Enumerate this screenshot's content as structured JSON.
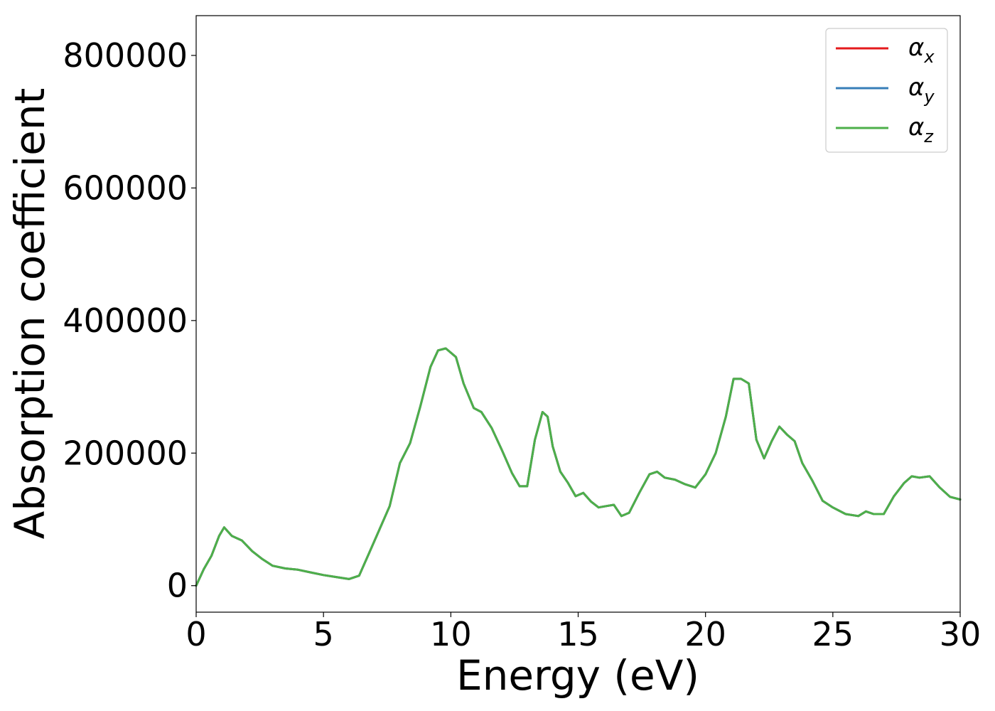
{
  "chart_data": {
    "type": "line",
    "title": "",
    "xlabel": "Energy (eV)",
    "ylabel": "Absorption coefficient",
    "xlim": [
      0,
      30
    ],
    "ylim": [
      -40000,
      860000
    ],
    "xticks": [
      "0",
      "5",
      "10",
      "15",
      "20",
      "25",
      "30"
    ],
    "xtick_values": [
      0,
      5,
      10,
      15,
      20,
      25,
      30
    ],
    "yticks": [
      "0",
      "200000",
      "400000",
      "600000",
      "800000"
    ],
    "ytick_values": [
      0,
      200000,
      400000,
      600000,
      800000
    ],
    "grid": false,
    "legend_position": "top-right",
    "series": [
      {
        "name": "α",
        "subscript": "x",
        "color": "#e41a1c",
        "x": [
          0,
          0.3,
          0.6,
          0.9,
          1.1,
          1.4,
          1.8,
          2.2,
          2.6,
          3.0,
          3.5,
          4.0,
          4.5,
          5.0,
          5.5,
          6.0,
          6.4,
          6.8,
          7.2,
          7.6,
          8.0,
          8.4,
          8.8,
          9.2,
          9.5,
          9.8,
          10.2,
          10.5,
          10.9,
          11.2,
          11.6,
          12.0,
          12.4,
          12.7,
          13.0,
          13.3,
          13.6,
          13.8,
          14.0,
          14.3,
          14.6,
          14.9,
          15.2,
          15.5,
          15.8,
          16.1,
          16.4,
          16.7,
          17.0,
          17.4,
          17.8,
          18.1,
          18.4,
          18.8,
          19.2,
          19.6,
          20.0,
          20.4,
          20.8,
          21.1,
          21.4,
          21.7,
          22.0,
          22.3,
          22.6,
          22.9,
          23.2,
          23.5,
          23.8,
          24.2,
          24.6,
          25.0,
          25.5,
          26.0,
          26.3,
          26.6,
          27.0,
          27.4,
          27.8,
          28.1,
          28.4,
          28.8,
          29.2,
          29.6,
          30.0
        ],
        "values": [
          0,
          25000,
          45000,
          75000,
          88000,
          75000,
          68000,
          52000,
          40000,
          30000,
          26000,
          24000,
          20000,
          16000,
          13000,
          10000,
          15000,
          50000,
          85000,
          120000,
          185000,
          215000,
          270000,
          330000,
          355000,
          358000,
          345000,
          305000,
          268000,
          262000,
          238000,
          205000,
          170000,
          150000,
          150000,
          220000,
          262000,
          255000,
          210000,
          172000,
          155000,
          135000,
          140000,
          127000,
          118000,
          120000,
          122000,
          105000,
          110000,
          140000,
          168000,
          172000,
          163000,
          160000,
          153000,
          148000,
          168000,
          200000,
          255000,
          312000,
          312000,
          305000,
          220000,
          192000,
          218000,
          240000,
          228000,
          218000,
          185000,
          158000,
          128000,
          118000,
          108000,
          105000,
          112000,
          108000,
          108000,
          135000,
          155000,
          165000,
          163000,
          165000,
          148000,
          134000,
          130000
        ]
      },
      {
        "name": "α",
        "subscript": "y",
        "color": "#377eb8",
        "x": [
          0,
          0.3,
          0.6,
          0.9,
          1.1,
          1.4,
          1.8,
          2.2,
          2.6,
          3.0,
          3.5,
          4.0,
          4.5,
          5.0,
          5.5,
          6.0,
          6.4,
          6.8,
          7.2,
          7.6,
          8.0,
          8.4,
          8.8,
          9.2,
          9.5,
          9.8,
          10.2,
          10.5,
          10.9,
          11.2,
          11.6,
          12.0,
          12.4,
          12.7,
          13.0,
          13.3,
          13.6,
          13.8,
          14.0,
          14.3,
          14.6,
          14.9,
          15.2,
          15.5,
          15.8,
          16.1,
          16.4,
          16.7,
          17.0,
          17.4,
          17.8,
          18.1,
          18.4,
          18.8,
          19.2,
          19.6,
          20.0,
          20.4,
          20.8,
          21.1,
          21.4,
          21.7,
          22.0,
          22.3,
          22.6,
          22.9,
          23.2,
          23.5,
          23.8,
          24.2,
          24.6,
          25.0,
          25.5,
          26.0,
          26.3,
          26.6,
          27.0,
          27.4,
          27.8,
          28.1,
          28.4,
          28.8,
          29.2,
          29.6,
          30.0
        ],
        "values": [
          0,
          25000,
          45000,
          75000,
          88000,
          75000,
          68000,
          52000,
          40000,
          30000,
          26000,
          24000,
          20000,
          16000,
          13000,
          10000,
          15000,
          50000,
          85000,
          120000,
          185000,
          215000,
          270000,
          330000,
          355000,
          358000,
          345000,
          305000,
          268000,
          262000,
          238000,
          205000,
          170000,
          150000,
          150000,
          220000,
          262000,
          255000,
          210000,
          172000,
          155000,
          135000,
          140000,
          127000,
          118000,
          120000,
          122000,
          105000,
          110000,
          140000,
          168000,
          172000,
          163000,
          160000,
          153000,
          148000,
          168000,
          200000,
          255000,
          312000,
          312000,
          305000,
          220000,
          192000,
          218000,
          240000,
          228000,
          218000,
          185000,
          158000,
          128000,
          118000,
          108000,
          105000,
          112000,
          108000,
          108000,
          135000,
          155000,
          165000,
          163000,
          165000,
          148000,
          134000,
          130000
        ]
      },
      {
        "name": "α",
        "subscript": "z",
        "color": "#4daf4a",
        "x": [
          0,
          0.3,
          0.6,
          0.9,
          1.1,
          1.4,
          1.8,
          2.2,
          2.6,
          3.0,
          3.5,
          4.0,
          4.5,
          5.0,
          5.5,
          6.0,
          6.4,
          6.8,
          7.2,
          7.6,
          8.0,
          8.4,
          8.8,
          9.2,
          9.5,
          9.8,
          10.2,
          10.5,
          10.9,
          11.2,
          11.6,
          12.0,
          12.4,
          12.7,
          13.0,
          13.3,
          13.6,
          13.8,
          14.0,
          14.3,
          14.6,
          14.9,
          15.2,
          15.5,
          15.8,
          16.1,
          16.4,
          16.7,
          17.0,
          17.4,
          17.8,
          18.1,
          18.4,
          18.8,
          19.2,
          19.6,
          20.0,
          20.4,
          20.8,
          21.1,
          21.4,
          21.7,
          22.0,
          22.3,
          22.6,
          22.9,
          23.2,
          23.5,
          23.8,
          24.2,
          24.6,
          25.0,
          25.5,
          26.0,
          26.3,
          26.6,
          27.0,
          27.4,
          27.8,
          28.1,
          28.4,
          28.8,
          29.2,
          29.6,
          30.0
        ],
        "values": [
          0,
          25000,
          45000,
          75000,
          88000,
          75000,
          68000,
          52000,
          40000,
          30000,
          26000,
          24000,
          20000,
          16000,
          13000,
          10000,
          15000,
          50000,
          85000,
          120000,
          185000,
          215000,
          270000,
          330000,
          355000,
          358000,
          345000,
          305000,
          268000,
          262000,
          238000,
          205000,
          170000,
          150000,
          150000,
          220000,
          262000,
          255000,
          210000,
          172000,
          155000,
          135000,
          140000,
          127000,
          118000,
          120000,
          122000,
          105000,
          110000,
          140000,
          168000,
          172000,
          163000,
          160000,
          153000,
          148000,
          168000,
          200000,
          255000,
          312000,
          312000,
          305000,
          220000,
          192000,
          218000,
          240000,
          228000,
          218000,
          185000,
          158000,
          128000,
          118000,
          108000,
          105000,
          112000,
          108000,
          108000,
          135000,
          155000,
          165000,
          163000,
          165000,
          148000,
          134000,
          130000
        ]
      }
    ]
  }
}
